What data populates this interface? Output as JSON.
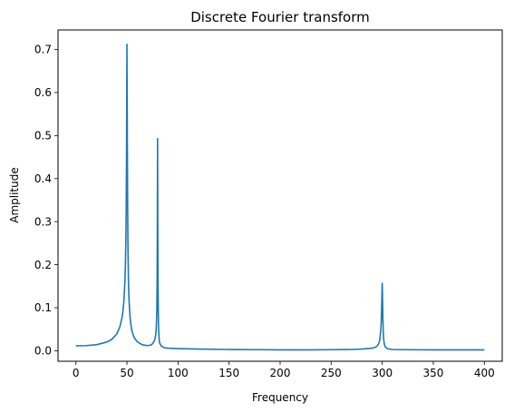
{
  "chart_data": {
    "type": "line",
    "title": "Discrete Fourier transform",
    "xlabel": "Frequency",
    "ylabel": "Amplitude",
    "xlim": [
      -17.5,
      417.5
    ],
    "ylim": [
      -0.0244,
      0.7454
    ],
    "grid": false,
    "x_ticks": [
      0,
      50,
      100,
      150,
      200,
      250,
      300,
      350,
      400
    ],
    "x_tick_labels": [
      "0",
      "50",
      "100",
      "150",
      "200",
      "250",
      "300",
      "350",
      "400"
    ],
    "y_ticks": [
      0.0,
      0.1,
      0.2,
      0.3,
      0.4,
      0.5,
      0.6,
      0.7
    ],
    "y_tick_labels": [
      "0.0",
      "0.1",
      "0.2",
      "0.3",
      "0.4",
      "0.5",
      "0.6",
      "0.7"
    ],
    "line_color": "#1f77b4",
    "series": [
      {
        "x": [
          0,
          10,
          20,
          30,
          35,
          40,
          43,
          45,
          46,
          47,
          48,
          48.5,
          49,
          49.3,
          49.6,
          49.8,
          50,
          50.2,
          50.4,
          50.7,
          51,
          51.5,
          52,
          53,
          54,
          55,
          57,
          60,
          65,
          70,
          73,
          75,
          77,
          78,
          78.5,
          79,
          79.3,
          79.6,
          79.8,
          80,
          80.2,
          80.4,
          80.7,
          81,
          81.5,
          82,
          84,
          87,
          90,
          100,
          120,
          150,
          180,
          200,
          230,
          250,
          270,
          280,
          290,
          293,
          295,
          296.5,
          297.5,
          298.5,
          299,
          299.4,
          299.7,
          300,
          300.3,
          300.6,
          301,
          301.5,
          302,
          303,
          305,
          310,
          320,
          350,
          400
        ],
        "y": [
          0.0115,
          0.012,
          0.014,
          0.02,
          0.026,
          0.039,
          0.055,
          0.075,
          0.09,
          0.115,
          0.16,
          0.2,
          0.27,
          0.34,
          0.45,
          0.58,
          0.712,
          0.6,
          0.47,
          0.33,
          0.24,
          0.16,
          0.12,
          0.08,
          0.058,
          0.045,
          0.031,
          0.021,
          0.014,
          0.012,
          0.013,
          0.016,
          0.024,
          0.034,
          0.045,
          0.07,
          0.1,
          0.17,
          0.3,
          0.493,
          0.3,
          0.17,
          0.09,
          0.05,
          0.028,
          0.018,
          0.01,
          0.007,
          0.006,
          0.005,
          0.004,
          0.003,
          0.0025,
          0.002,
          0.002,
          0.0025,
          0.003,
          0.004,
          0.006,
          0.008,
          0.011,
          0.016,
          0.024,
          0.045,
          0.065,
          0.095,
          0.13,
          0.157,
          0.12,
          0.08,
          0.045,
          0.025,
          0.016,
          0.009,
          0.005,
          0.003,
          0.0025,
          0.002,
          0.002
        ]
      }
    ]
  }
}
